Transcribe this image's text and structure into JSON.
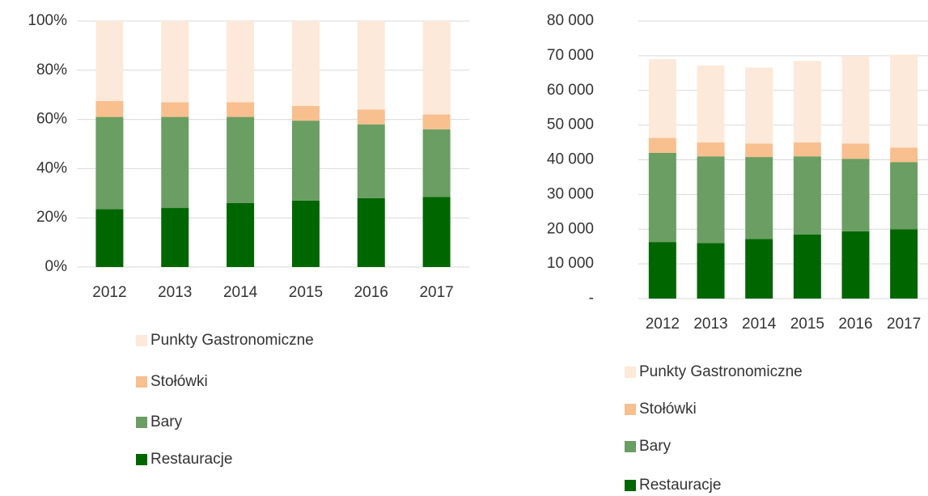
{
  "chart_data": [
    {
      "type": "stacked_bar",
      "categories": [
        "2012",
        "2013",
        "2014",
        "2015",
        "2016",
        "2017"
      ],
      "series": [
        {
          "name": "Restauracje",
          "color": "#006600",
          "values": [
            23.5,
            24,
            26,
            27,
            28,
            28.5
          ]
        },
        {
          "name": "Bary",
          "color": "#6a9e62",
          "values": [
            37.5,
            37,
            35,
            32.5,
            30,
            27.5
          ]
        },
        {
          "name": "Stołówki",
          "color": "#f8bf8f",
          "values": [
            6.5,
            6,
            6,
            6,
            6,
            6
          ]
        },
        {
          "name": "Punkty Gastronomiczne",
          "color": "#fde9d9",
          "values": [
            32.5,
            33,
            33,
            34.5,
            36,
            38
          ]
        }
      ],
      "ylim": [
        0,
        100
      ],
      "yticks": [
        {
          "value": 0,
          "label": "0%"
        },
        {
          "value": 20,
          "label": "20%"
        },
        {
          "value": 40,
          "label": "40%"
        },
        {
          "value": 60,
          "label": "60%"
        },
        {
          "value": 80,
          "label": "80%"
        },
        {
          "value": 100,
          "label": "100%"
        }
      ],
      "grid": true
    },
    {
      "type": "stacked_bar",
      "categories": [
        "2012",
        "2013",
        "2014",
        "2015",
        "2016",
        "2017"
      ],
      "series": [
        {
          "name": "Restauracje",
          "color": "#006600",
          "values": [
            16300,
            16000,
            17200,
            18500,
            19400,
            20000
          ]
        },
        {
          "name": "Bary",
          "color": "#6a9e62",
          "values": [
            25700,
            25000,
            23600,
            22500,
            20900,
            19300
          ]
        },
        {
          "name": "Stołówki",
          "color": "#f8bf8f",
          "values": [
            4300,
            4000,
            3900,
            4000,
            4400,
            4200
          ]
        },
        {
          "name": "Punkty Gastronomiczne",
          "color": "#fde9d9",
          "values": [
            22700,
            22200,
            21900,
            23500,
            25100,
            26800
          ]
        }
      ],
      "ylim": [
        0,
        80000
      ],
      "yticks": [
        {
          "value": 0,
          "label": "-"
        },
        {
          "value": 10000,
          "label": "10 000"
        },
        {
          "value": 20000,
          "label": "20 000"
        },
        {
          "value": 30000,
          "label": "30 000"
        },
        {
          "value": 40000,
          "label": "40 000"
        },
        {
          "value": 50000,
          "label": "50 000"
        },
        {
          "value": 60000,
          "label": "60 000"
        },
        {
          "value": 70000,
          "label": "70 000"
        },
        {
          "value": 80000,
          "label": "80 000"
        }
      ],
      "grid": true
    }
  ]
}
